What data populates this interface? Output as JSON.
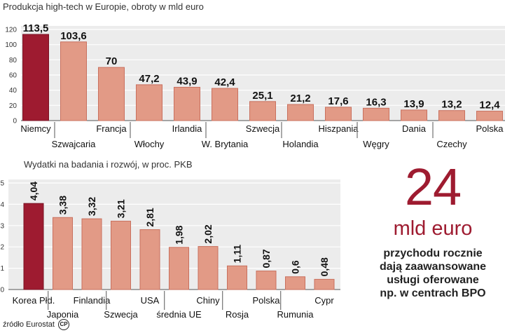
{
  "chart_data": [
    {
      "type": "bar",
      "title": "Produkcja high-tech w Europie, obroty w mld euro",
      "categories": [
        "Niemcy",
        "Szwajcaria",
        "Francja",
        "Włochy",
        "Irlandia",
        "W. Brytania",
        "Szwecja",
        "Holandia",
        "Hiszpania",
        "Węgry",
        "Dania",
        "Czechy",
        "Polska"
      ],
      "values": [
        113.5,
        103.6,
        70,
        47.2,
        43.9,
        42.4,
        25.1,
        21.2,
        17.6,
        16.3,
        13.9,
        13.2,
        12.4
      ],
      "value_labels": [
        "113,5",
        "103,6",
        "70",
        "47,2",
        "43,9",
        "42,4",
        "25,1",
        "21,2",
        "17,6",
        "16,3",
        "13,9",
        "13,2",
        "12,4"
      ],
      "highlight_index": 0,
      "yticks": [
        0,
        20,
        40,
        60,
        80,
        100,
        120
      ],
      "ylim": [
        0,
        120
      ],
      "grid": true,
      "xlabel": "",
      "ylabel": ""
    },
    {
      "type": "bar",
      "title": "Wydatki na badania i rozwój, w proc. PKB",
      "categories": [
        "Korea Płd.",
        "Japonia",
        "Finlandia",
        "Szwecja",
        "USA",
        "średnia UE",
        "Chiny",
        "Rosja",
        "Polska",
        "Rumunia",
        "Cypr"
      ],
      "values": [
        4.04,
        3.38,
        3.32,
        3.21,
        2.81,
        1.98,
        2.02,
        1.11,
        0.87,
        0.6,
        0.48
      ],
      "value_labels": [
        "4,04",
        "3,38",
        "3,32",
        "3,21",
        "2,81",
        "1,98",
        "2,02",
        "1,11",
        "0,87",
        "0,6",
        "0,48"
      ],
      "highlight_index": 0,
      "yticks": [
        0,
        1,
        2,
        3,
        4,
        5
      ],
      "ylim": [
        0,
        5
      ],
      "grid": true,
      "xlabel": "",
      "ylabel": ""
    }
  ],
  "fact": {
    "number": "24",
    "unit": "mld euro",
    "lines": [
      "przychodu rocznie",
      "dają zaawansowane",
      "usługi oferowane",
      "np. w centrach BPO"
    ]
  },
  "source": {
    "text": "źródło Eurostat",
    "badge": "CP"
  },
  "colors": {
    "highlight": "#9e1b30",
    "bar": "#e29a86",
    "bar_edge": "#c9705e",
    "panel": "#ececec",
    "grid": "#ffffff",
    "axis": "#555555"
  }
}
